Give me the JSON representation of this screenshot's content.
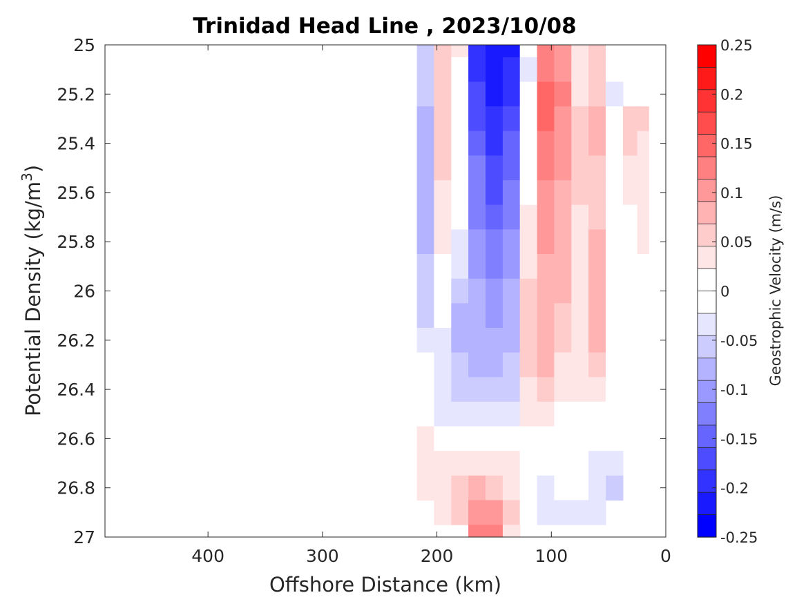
{
  "chart_data": {
    "type": "heatmap",
    "subtype": "filled-contour",
    "title": "Trinidad Head Line , 2023/10/08",
    "xlabel": "Offshore Distance (km)",
    "ylabel_prefix": "Potential Density (kg/m",
    "ylabel_sup": "3",
    "ylabel_suffix": ")",
    "xlim": [
      490,
      0
    ],
    "x_reversed": true,
    "ylim": [
      25,
      27
    ],
    "y_reversed": true,
    "x_ticks": [
      400,
      300,
      200,
      100,
      0
    ],
    "x_tick_labels": [
      "400",
      "300",
      "200",
      "100",
      "0"
    ],
    "y_ticks": [
      25,
      25.2,
      25.4,
      25.6,
      25.8,
      26,
      26.2,
      26.4,
      26.6,
      26.8,
      27
    ],
    "y_tick_labels": [
      "25",
      "25.2",
      "25.4",
      "25.6",
      "25.8",
      "26",
      "26.2",
      "26.4",
      "26.6",
      "26.8",
      "27"
    ],
    "colorbar": {
      "label": "Geostrophic Velocity (m/s)",
      "clim": [
        -0.25,
        0.25
      ],
      "ticks": [
        0.25,
        0.2,
        0.15,
        0.1,
        0.05,
        0,
        -0.05,
        -0.1,
        -0.15,
        -0.2,
        -0.25
      ],
      "tick_labels": [
        "0.25",
        "0.2",
        "0.15",
        "0.1",
        "0.05",
        "0",
        "-0.05",
        "-0.1",
        "-0.15",
        "-0.2",
        "-0.25"
      ],
      "levels": [
        0.225,
        0.2,
        0.175,
        0.15,
        0.125,
        0.1,
        0.075,
        0.05,
        0.025,
        0,
        -0.025,
        -0.05,
        -0.075,
        -0.1,
        -0.125,
        -0.15,
        -0.175,
        -0.2,
        -0.225,
        -0.25
      ],
      "colors": [
        "#ff0000",
        "#ff1a1a",
        "#ff3333",
        "#ff4d4d",
        "#ff6666",
        "#ff8080",
        "#ff9999",
        "#ffb3b3",
        "#ffcccc",
        "#ffe6e6",
        "#ffffff",
        "#ffffff",
        "#e6e6ff",
        "#ccccff",
        "#b3b3ff",
        "#9999ff",
        "#8080ff",
        "#6666ff",
        "#4d4dff",
        "#3333ff",
        "#1a1aff",
        "#0000ff"
      ]
    },
    "stations_km": [
      210,
      195,
      180,
      165,
      150,
      135,
      120,
      105,
      90,
      75,
      60,
      45,
      30,
      20
    ],
    "depth_sigma": [
      25.0,
      25.1,
      25.2,
      25.3,
      25.4,
      25.5,
      25.6,
      25.7,
      25.8,
      25.9,
      26.0,
      26.1,
      26.2,
      26.3,
      26.4,
      26.5,
      26.6,
      26.7,
      26.8,
      26.9,
      27.0
    ],
    "velocity_ms": [
      [
        -0.05,
        0.05,
        0.03,
        -0.2,
        -0.22,
        -0.21,
        -0.02,
        0.12,
        0.1,
        0.03,
        0.05,
        -0.02,
        null,
        null
      ],
      [
        -0.06,
        0.06,
        0.02,
        -0.19,
        -0.22,
        -0.2,
        -0.03,
        0.13,
        0.11,
        0.04,
        0.06,
        -0.02,
        null,
        null
      ],
      [
        -0.06,
        0.06,
        0.02,
        -0.18,
        -0.21,
        -0.19,
        -0.02,
        0.14,
        0.12,
        0.04,
        0.06,
        -0.03,
        null,
        null
      ],
      [
        -0.07,
        0.06,
        0.01,
        -0.16,
        -0.2,
        -0.17,
        -0.01,
        0.15,
        0.11,
        0.05,
        0.07,
        -0.02,
        0.05,
        0.05
      ],
      [
        -0.07,
        0.05,
        0.01,
        -0.14,
        -0.19,
        -0.15,
        0.0,
        0.13,
        0.1,
        0.05,
        0.07,
        -0.02,
        0.05,
        0.04
      ],
      [
        -0.08,
        0.05,
        0.0,
        -0.13,
        -0.18,
        -0.14,
        0.01,
        0.12,
        0.1,
        0.05,
        0.06,
        -0.01,
        0.04,
        0.04
      ],
      [
        -0.08,
        0.04,
        -0.01,
        -0.13,
        -0.17,
        -0.13,
        0.02,
        0.11,
        0.09,
        0.05,
        0.06,
        0.0,
        0.03,
        0.04
      ],
      [
        -0.08,
        0.04,
        -0.02,
        -0.12,
        -0.15,
        -0.12,
        0.03,
        0.1,
        0.09,
        0.04,
        0.06,
        0.0,
        0.02,
        0.03
      ],
      [
        -0.07,
        0.03,
        -0.03,
        -0.11,
        -0.13,
        -0.11,
        0.04,
        0.1,
        0.08,
        0.04,
        0.07,
        0.0,
        0.02,
        0.03
      ],
      [
        -0.06,
        0.02,
        -0.04,
        -0.1,
        -0.12,
        -0.1,
        0.04,
        0.09,
        0.08,
        0.04,
        0.07,
        0.01,
        0.01,
        0.02
      ],
      [
        -0.05,
        0.0,
        -0.06,
        -0.09,
        -0.11,
        -0.09,
        0.05,
        0.09,
        0.07,
        0.04,
        0.07,
        0.01,
        0.01,
        0.02
      ],
      [
        -0.05,
        -0.02,
        -0.07,
        -0.08,
        -0.1,
        -0.08,
        0.06,
        0.08,
        0.06,
        0.04,
        0.07,
        0.01,
        0.01,
        0.0
      ],
      [
        -0.04,
        -0.04,
        -0.07,
        -0.08,
        -0.09,
        -0.07,
        0.06,
        0.08,
        0.05,
        0.04,
        0.07,
        0.01,
        0.0,
        null
      ],
      [
        0.0,
        -0.04,
        -0.06,
        -0.07,
        -0.08,
        -0.06,
        0.05,
        0.07,
        0.04,
        0.03,
        0.05,
        0.01,
        null,
        null
      ],
      [
        0.01,
        -0.04,
        -0.05,
        -0.05,
        -0.06,
        -0.05,
        0.04,
        0.05,
        0.03,
        0.03,
        0.03,
        0.01,
        null,
        null
      ],
      [
        0.02,
        -0.03,
        -0.03,
        -0.03,
        -0.04,
        -0.03,
        0.03,
        0.03,
        0.02,
        0.02,
        0.02,
        0.0,
        null,
        null
      ],
      [
        0.03,
        0.01,
        0.0,
        0.0,
        0.0,
        0.0,
        0.0,
        0.0,
        0.0,
        0.0,
        0.0,
        0.0,
        null,
        null
      ],
      [
        0.04,
        0.03,
        0.03,
        0.04,
        0.04,
        0.03,
        0.0,
        -0.02,
        -0.01,
        0.0,
        -0.03,
        -0.03,
        null,
        null
      ],
      [
        0.03,
        0.04,
        0.05,
        0.08,
        0.06,
        0.04,
        0.0,
        -0.03,
        -0.02,
        0.0,
        -0.04,
        -0.05,
        null,
        null
      ],
      [
        null,
        0.03,
        0.06,
        0.11,
        0.1,
        0.05,
        -0.02,
        -0.04,
        -0.03,
        -0.03,
        -0.03,
        null,
        null,
        null
      ],
      [
        null,
        null,
        null,
        0.12,
        0.12,
        0.04,
        null,
        null,
        null,
        null,
        null,
        null,
        null,
        null
      ]
    ]
  }
}
